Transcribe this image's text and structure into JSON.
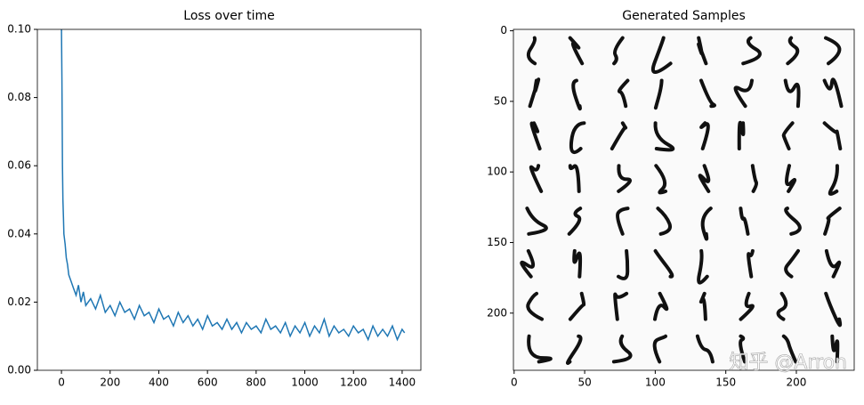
{
  "chart_data": [
    {
      "type": "line",
      "title": "Loss over time",
      "color": "#1f77b4",
      "x": [
        0,
        2,
        4,
        6,
        8,
        10,
        15,
        20,
        25,
        30,
        40,
        50,
        60,
        70,
        80,
        90,
        100,
        120,
        140,
        160,
        180,
        200,
        220,
        240,
        260,
        280,
        300,
        320,
        340,
        360,
        380,
        400,
        420,
        440,
        460,
        480,
        500,
        520,
        540,
        560,
        580,
        600,
        620,
        640,
        660,
        680,
        700,
        720,
        740,
        760,
        780,
        800,
        820,
        840,
        860,
        880,
        900,
        920,
        940,
        960,
        980,
        1000,
        1020,
        1040,
        1060,
        1080,
        1100,
        1120,
        1140,
        1160,
        1180,
        1200,
        1220,
        1240,
        1260,
        1280,
        1300,
        1320,
        1340,
        1360,
        1380,
        1400,
        1410
      ],
      "values": [
        0.1,
        0.085,
        0.06,
        0.05,
        0.045,
        0.04,
        0.037,
        0.033,
        0.031,
        0.028,
        0.026,
        0.024,
        0.022,
        0.025,
        0.02,
        0.023,
        0.019,
        0.021,
        0.018,
        0.022,
        0.017,
        0.019,
        0.016,
        0.02,
        0.017,
        0.018,
        0.015,
        0.019,
        0.016,
        0.017,
        0.014,
        0.018,
        0.015,
        0.016,
        0.013,
        0.017,
        0.014,
        0.016,
        0.013,
        0.015,
        0.012,
        0.016,
        0.013,
        0.014,
        0.012,
        0.015,
        0.012,
        0.014,
        0.011,
        0.014,
        0.012,
        0.013,
        0.011,
        0.015,
        0.012,
        0.013,
        0.011,
        0.014,
        0.01,
        0.013,
        0.011,
        0.014,
        0.01,
        0.013,
        0.011,
        0.015,
        0.01,
        0.013,
        0.011,
        0.012,
        0.01,
        0.013,
        0.011,
        0.012,
        0.009,
        0.013,
        0.01,
        0.012,
        0.01,
        0.013,
        0.009,
        0.012,
        0.011
      ],
      "xlim": [
        -99,
        1477
      ],
      "xticks": [
        0,
        200,
        400,
        600,
        800,
        1000,
        1200,
        1400
      ],
      "ylim": [
        0,
        0.1
      ],
      "yticks": [
        {
          "value": 0,
          "label": "0.00"
        },
        {
          "value": 0.02,
          "label": "0.02"
        },
        {
          "value": 0.04,
          "label": "0.04"
        },
        {
          "value": 0.06,
          "label": "0.06"
        },
        {
          "value": 0.08,
          "label": "0.08"
        },
        {
          "value": 0.1,
          "label": "0.10"
        }
      ]
    },
    {
      "type": "image",
      "title": "Generated Samples",
      "watermark": "知乎 @Arron",
      "xlim": [
        -0.5,
        241
      ],
      "xticks": [
        0,
        50,
        100,
        150,
        200
      ],
      "ylim": [
        240.5,
        -1
      ],
      "yticks": [
        0,
        50,
        100,
        150,
        200
      ]
    }
  ]
}
